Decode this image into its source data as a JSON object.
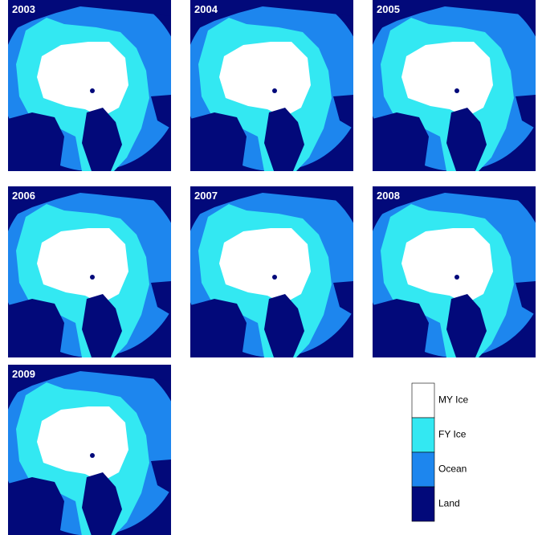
{
  "panels": [
    {
      "year": "2003"
    },
    {
      "year": "2004"
    },
    {
      "year": "2005"
    },
    {
      "year": "2006"
    },
    {
      "year": "2007"
    },
    {
      "year": "2008"
    },
    {
      "year": "2009"
    }
  ],
  "legend": [
    {
      "label": "MY Ice",
      "color": "#ffffff"
    },
    {
      "label": "FY Ice",
      "color": "#33e8f2"
    },
    {
      "label": "Ocean",
      "color": "#1d86ee"
    },
    {
      "label": "Land",
      "color": "#02097a"
    }
  ]
}
